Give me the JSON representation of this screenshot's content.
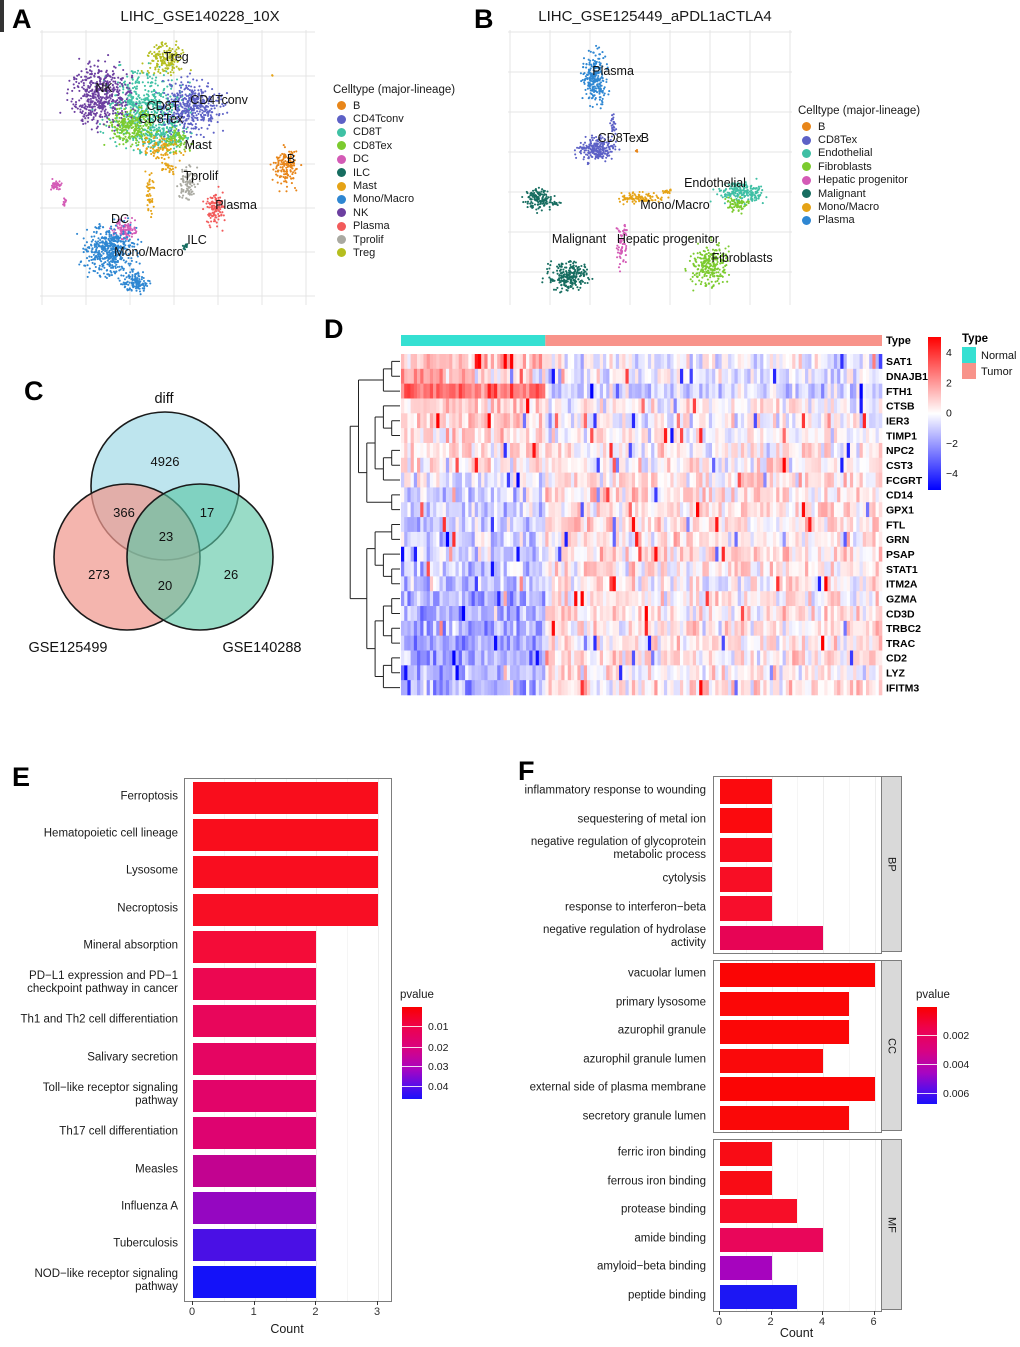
{
  "panel_a": {
    "label": "A",
    "title": "LIHC_GSE140228_10X",
    "legend_title": "Celltype (major-lineage)",
    "legend": [
      {
        "name": "B",
        "color": "#E8861A"
      },
      {
        "name": "CD4Tconv",
        "color": "#5D61C6"
      },
      {
        "name": "CD8T",
        "color": "#3FC1A4"
      },
      {
        "name": "CD8Tex",
        "color": "#7CCB2F"
      },
      {
        "name": "DC",
        "color": "#D45BB6"
      },
      {
        "name": "ILC",
        "color": "#176D60"
      },
      {
        "name": "Mast",
        "color": "#E5A316"
      },
      {
        "name": "Mono/Macro",
        "color": "#2F87D2"
      },
      {
        "name": "NK",
        "color": "#6C3FA0"
      },
      {
        "name": "Plasma",
        "color": "#F25B5B"
      },
      {
        "name": "Tprolif",
        "color": "#A9A9A1"
      },
      {
        "name": "Treg",
        "color": "#B5BE1F"
      }
    ]
  },
  "panel_b": {
    "label": "B",
    "title": "LIHC_GSE125449_aPDL1aCTLA4",
    "legend_title": "Celltype (major-lineage)",
    "legend": [
      {
        "name": "B",
        "color": "#E8861A"
      },
      {
        "name": "CD8Tex",
        "color": "#5D61C6"
      },
      {
        "name": "Endothelial",
        "color": "#3FBFA4"
      },
      {
        "name": "Fibroblasts",
        "color": "#7CCB2F"
      },
      {
        "name": "Hepatic progenitor",
        "color": "#D45BB6"
      },
      {
        "name": "Malignant",
        "color": "#176D60"
      },
      {
        "name": "Mono/Macro",
        "color": "#E5A316"
      },
      {
        "name": "Plasma",
        "color": "#2F87D2"
      }
    ]
  },
  "panel_c": {
    "label": "C"
  },
  "panel_d": {
    "label": "D",
    "annotation_title": "Type",
    "annotation": [
      {
        "label": "Normal",
        "color": "#35E0D2"
      },
      {
        "label": "Tumor",
        "color": "#F8938A"
      }
    ],
    "colorbar_ticks": [
      "4",
      "2",
      "0",
      "−2",
      "−4"
    ]
  },
  "panel_e": {
    "label": "E",
    "xlabel": "Count",
    "xticks": [
      "0",
      "1",
      "2",
      "3"
    ],
    "legend_title": "pvalue",
    "legend_ticks": [
      "0.01",
      "0.02",
      "0.03",
      "0.04"
    ]
  },
  "panel_f": {
    "label": "F",
    "xlabel": "Count",
    "xticks": [
      "0",
      "2",
      "4",
      "6"
    ],
    "legend_title": "pvalue",
    "legend_ticks": [
      "0.002",
      "0.004",
      "0.006"
    ],
    "facet_labels": [
      "BP",
      "CC",
      "MF"
    ]
  },
  "chart_data": [
    {
      "id": "A",
      "type": "scatter",
      "title": "LIHC_GSE140228_10X",
      "legend_title": "Celltype (major-lineage)",
      "clusters": [
        {
          "name": "CD8T",
          "color": "#3FC1A4",
          "label_pos": [
            0.447,
            0.276
          ],
          "blobs": [
            [
              0.382,
              0.284,
              0.16,
              0.15,
              550
            ],
            [
              0.45,
              0.38,
              0.09,
              0.08,
              150
            ]
          ]
        },
        {
          "name": "CD8Tex",
          "color": "#7CCB2F",
          "label_pos": [
            0.44,
            0.324
          ],
          "blobs": [
            [
              0.33,
              0.35,
              0.09,
              0.075,
              260
            ],
            [
              0.5,
              0.4,
              0.05,
              0.05,
              80
            ]
          ]
        },
        {
          "name": "Mast",
          "color": "#E5A316",
          "label_pos": [
            0.575,
            0.418
          ],
          "blobs": [
            [
              0.44,
              0.43,
              0.075,
              0.05,
              90
            ],
            [
              0.4,
              0.6,
              0.015,
              0.095,
              45
            ],
            [
              0.47,
              0.5,
              0.03,
              0.03,
              25
            ],
            [
              0.845,
              0.165,
              0.004,
              0.004,
              2
            ]
          ]
        },
        {
          "name": "NK",
          "color": "#6C3FA0",
          "label_pos": [
            0.233,
            0.211
          ],
          "blobs": [
            [
              0.218,
              0.24,
              0.115,
              0.125,
              480
            ]
          ]
        },
        {
          "name": "Treg",
          "color": "#B5BE1F",
          "label_pos": [
            0.495,
            0.098
          ],
          "blobs": [
            [
              0.458,
              0.1,
              0.075,
              0.062,
              170
            ]
          ]
        },
        {
          "name": "CD4Tconv",
          "color": "#5D61C6",
          "label_pos": [
            0.651,
            0.255
          ],
          "blobs": [
            [
              0.553,
              0.276,
              0.115,
              0.1,
              420
            ]
          ]
        },
        {
          "name": "Tprolif",
          "color": "#A9A9A1",
          "label_pos": [
            0.585,
            0.531
          ],
          "blobs": [
            [
              0.538,
              0.555,
              0.037,
              0.075,
              90
            ]
          ]
        },
        {
          "name": "Plasma",
          "color": "#F25B5B",
          "label_pos": [
            0.713,
            0.636
          ],
          "blobs": [
            [
              0.636,
              0.645,
              0.036,
              0.07,
              120
            ]
          ]
        },
        {
          "name": "B",
          "color": "#E8861A",
          "label_pos": [
            0.913,
            0.469
          ],
          "blobs": [
            [
              0.895,
              0.5,
              0.047,
              0.082,
              150
            ]
          ]
        },
        {
          "name": "DC",
          "color": "#D45BB6",
          "label_pos": [
            0.291,
            0.687
          ],
          "blobs": [
            [
              0.31,
              0.725,
              0.05,
              0.047,
              100
            ],
            [
              0.062,
              0.565,
              0.027,
              0.02,
              40
            ],
            [
              0.09,
              0.63,
              0.01,
              0.025,
              12
            ]
          ]
        },
        {
          "name": "Mono/Macro",
          "color": "#2F87D2",
          "label_pos": [
            0.396,
            0.807
          ],
          "blobs": [
            [
              0.255,
              0.8,
              0.105,
              0.1,
              500
            ],
            [
              0.345,
              0.915,
              0.055,
              0.04,
              120
            ]
          ]
        },
        {
          "name": "ILC",
          "color": "#176D60",
          "label_pos": [
            0.571,
            0.764
          ],
          "blobs": [
            [
              0.53,
              0.785,
              0.013,
              0.013,
              14
            ]
          ]
        }
      ]
    },
    {
      "id": "B",
      "type": "scatter",
      "title": "LIHC_GSE125449_aPDL1aCTLA4",
      "legend_title": "Celltype (major-lineage)",
      "clusters": [
        {
          "name": "Plasma",
          "color": "#2F87D2",
          "label_pos": [
            0.37,
            0.149
          ],
          "blobs": [
            [
              0.306,
              0.171,
              0.045,
              0.105,
              260
            ]
          ]
        },
        {
          "name": "CD8Tex",
          "color": "#5D61C6",
          "label_pos": [
            0.394,
            0.393
          ],
          "blobs": [
            [
              0.31,
              0.436,
              0.068,
              0.048,
              240
            ],
            [
              0.37,
              0.345,
              0.012,
              0.045,
              25
            ]
          ]
        },
        {
          "name": "B",
          "color": "#E8861A",
          "label_pos": [
            0.482,
            0.393
          ],
          "blobs": [
            [
              0.453,
              0.44,
              0.006,
              0.008,
              5
            ]
          ]
        },
        {
          "name": "Malignant",
          "color": "#176D60",
          "label_pos": [
            0.25,
            0.76
          ],
          "blobs": [
            [
              0.106,
              0.615,
              0.05,
              0.042,
              130
            ],
            [
              0.21,
              0.895,
              0.075,
              0.055,
              240
            ],
            [
              0.17,
              0.63,
              0.025,
              0.008,
              15
            ]
          ]
        },
        {
          "name": "Mono/Macro",
          "color": "#E5A316",
          "label_pos": [
            0.588,
            0.636
          ],
          "blobs": [
            [
              0.465,
              0.61,
              0.095,
              0.02,
              100
            ],
            [
              0.56,
              0.585,
              0.02,
              0.012,
              15
            ]
          ]
        },
        {
          "name": "Endothelial",
          "color": "#3FBFA4",
          "label_pos": [
            0.729,
            0.556
          ],
          "blobs": [
            [
              0.824,
              0.59,
              0.09,
              0.042,
              200
            ]
          ]
        },
        {
          "name": "Fibroblasts",
          "color": "#7CCB2F",
          "label_pos": [
            0.824,
            0.829
          ],
          "blobs": [
            [
              0.806,
              0.635,
              0.045,
              0.028,
              70
            ],
            [
              0.711,
              0.85,
              0.07,
              0.085,
              260
            ]
          ]
        },
        {
          "name": "Hepatic progenitor",
          "color": "#D45BB6",
          "label_pos": [
            0.563,
            0.76
          ],
          "blobs": [
            [
              0.401,
              0.79,
              0.02,
              0.075,
              55
            ],
            [
              0.41,
              0.72,
              0.01,
              0.02,
              10
            ]
          ]
        }
      ]
    },
    {
      "id": "C",
      "type": "venn",
      "sets": [
        {
          "name": "diff",
          "unique": 4926,
          "color": "#A5DBE8"
        },
        {
          "name": "GSE125499",
          "unique": 273,
          "color": "#F0998F"
        },
        {
          "name": "GSE140288",
          "unique": 26,
          "color": "#5BC6A4"
        }
      ],
      "intersections": [
        {
          "sets": [
            "diff",
            "GSE125499"
          ],
          "count": 366
        },
        {
          "sets": [
            "diff",
            "GSE140288"
          ],
          "count": 17
        },
        {
          "sets": [
            "GSE125499",
            "GSE140288"
          ],
          "count": 20
        },
        {
          "sets": [
            "diff",
            "GSE125499",
            "GSE140288"
          ],
          "count": 23
        }
      ]
    },
    {
      "id": "D",
      "type": "heatmap",
      "genes": [
        "SAT1",
        "DNAJB1",
        "FTH1",
        "CTSB",
        "IER3",
        "TIMP1",
        "NPC2",
        "CST3",
        "FCGRT",
        "CD14",
        "GPX1",
        "FTL",
        "GRN",
        "PSAP",
        "STAT1",
        "ITM2A",
        "GZMA",
        "CD3D",
        "TRBC2",
        "TRAC",
        "CD2",
        "LYZ",
        "IFITM3"
      ],
      "row_means_normal_tumor": [
        [
          0.7,
          -0.15
        ],
        [
          0.9,
          -0.25
        ],
        [
          1.6,
          -0.45
        ],
        [
          0.5,
          0.05
        ],
        [
          0.55,
          -0.05
        ],
        [
          0.3,
          0.05
        ],
        [
          0.25,
          0.1
        ],
        [
          0.3,
          0.15
        ],
        [
          -0.15,
          0.25
        ],
        [
          -0.45,
          0.3
        ],
        [
          -0.5,
          0.3
        ],
        [
          -0.45,
          0.35
        ],
        [
          -0.55,
          0.3
        ],
        [
          -0.5,
          0.3
        ],
        [
          -0.65,
          0.2
        ],
        [
          -0.75,
          0.15
        ],
        [
          -0.9,
          0.2
        ],
        [
          -1.0,
          0.2
        ],
        [
          -0.95,
          0.2
        ],
        [
          -1.0,
          0.2
        ],
        [
          -0.95,
          0.2
        ],
        [
          -0.8,
          0.15
        ],
        [
          -0.85,
          0.3
        ]
      ],
      "column_groups": [
        {
          "label": "Normal",
          "fraction": 0.3
        },
        {
          "label": "Tumor",
          "fraction": 0.7
        }
      ],
      "value_range": [
        -4,
        4
      ]
    },
    {
      "id": "E",
      "type": "bar",
      "xlabel": "Count",
      "xlim": [
        0,
        3
      ],
      "legend": "pvalue",
      "items": [
        {
          "term": "Ferroptosis",
          "count": 3,
          "color": "#F90D1C"
        },
        {
          "term": "Hematopoietic cell lineage",
          "count": 3,
          "color": "#F90D1C"
        },
        {
          "term": "Lysosome",
          "count": 3,
          "color": "#F90D1F"
        },
        {
          "term": "Necroptosis",
          "count": 3,
          "color": "#F80E24"
        },
        {
          "term": "Mineral absorption",
          "count": 2,
          "color": "#F40C38"
        },
        {
          "term": "PD−L1 expression and PD−1 checkpoint pathway in cancer",
          "count": 2,
          "color": "#EC0751"
        },
        {
          "term": "Th1 and Th2 cell differentiation",
          "count": 2,
          "color": "#E8065B"
        },
        {
          "term": "Salivary secretion",
          "count": 2,
          "color": "#E50562"
        },
        {
          "term": "Toll−like receptor signaling pathway",
          "count": 2,
          "color": "#E20469"
        },
        {
          "term": "Th17 cell differentiation",
          "count": 2,
          "color": "#DE0370"
        },
        {
          "term": "Measles",
          "count": 2,
          "color": "#C20390"
        },
        {
          "term": "Influenza A",
          "count": 2,
          "color": "#9507C1"
        },
        {
          "term": "Tuberculosis",
          "count": 2,
          "color": "#4A10E5"
        },
        {
          "term": "NOD−like receptor signaling pathway",
          "count": 2,
          "color": "#1412F9"
        }
      ]
    },
    {
      "id": "F",
      "type": "bar",
      "xlabel": "Count",
      "xlim": [
        0,
        6
      ],
      "legend": "pvalue",
      "facets": [
        {
          "name": "BP",
          "items": [
            {
              "term": "inflammatory response to wounding",
              "count": 2,
              "color": "#FB0A0E"
            },
            {
              "term": "sequestering of metal ion",
              "count": 2,
              "color": "#FB0A0E"
            },
            {
              "term": "negative regulation of glycoprotein metabolic process",
              "count": 2,
              "color": "#F90D1E"
            },
            {
              "term": "cytolysis",
              "count": 2,
              "color": "#F80E25"
            },
            {
              "term": "response to interferon−beta",
              "count": 2,
              "color": "#F70E2C"
            },
            {
              "term": "negative regulation of hydrolase activity",
              "count": 4,
              "color": "#E70455"
            }
          ]
        },
        {
          "name": "CC",
          "items": [
            {
              "term": "vacuolar lumen",
              "count": 6,
              "color": "#FB0505"
            },
            {
              "term": "primary lysosome",
              "count": 5,
              "color": "#FB0707"
            },
            {
              "term": "azurophil granule",
              "count": 5,
              "color": "#FB0707"
            },
            {
              "term": "azurophil granule lumen",
              "count": 4,
              "color": "#FA090B"
            },
            {
              "term": "external side of plasma membrane",
              "count": 6,
              "color": "#FB0505"
            },
            {
              "term": "secretory granule lumen",
              "count": 5,
              "color": "#FA0808"
            }
          ]
        },
        {
          "name": "MF",
          "items": [
            {
              "term": "ferric iron binding",
              "count": 2,
              "color": "#F90C15"
            },
            {
              "term": "ferrous iron binding",
              "count": 2,
              "color": "#F90C15"
            },
            {
              "term": "protease binding",
              "count": 3,
              "color": "#F70E28"
            },
            {
              "term": "amide binding",
              "count": 4,
              "color": "#E9065A"
            },
            {
              "term": "amyloid−beta binding",
              "count": 2,
              "color": "#A604BE"
            },
            {
              "term": "peptide binding",
              "count": 3,
              "color": "#1C17F4"
            }
          ]
        }
      ]
    }
  ]
}
